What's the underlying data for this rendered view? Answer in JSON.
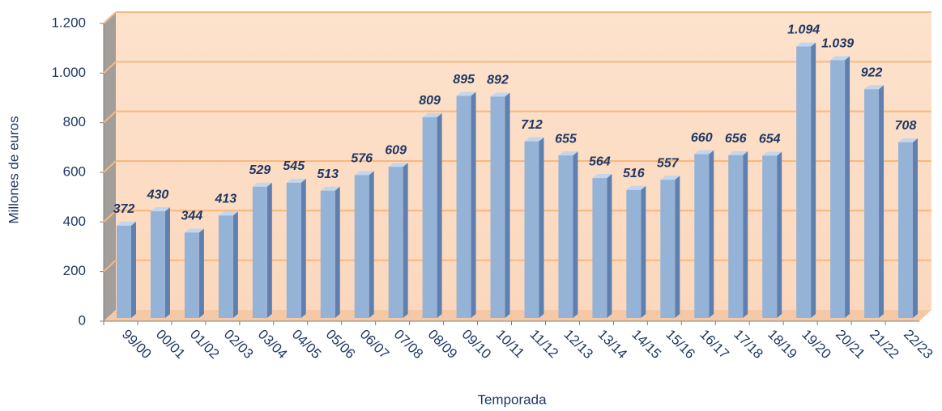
{
  "chart_data": {
    "type": "bar",
    "x_label": "Temporada",
    "y_label": "Millones de euros",
    "categories": [
      "99/00",
      "00/01",
      "01/02",
      "02/03",
      "03/04",
      "04/05",
      "05/06",
      "06/07",
      "07/08",
      "08/09",
      "09/10",
      "10/11",
      "11/12",
      "12/13",
      "13/14",
      "14/15",
      "15/16",
      "16/17",
      "17/18",
      "18/19",
      "19/20",
      "20/21",
      "21/22",
      "22/23"
    ],
    "values": [
      372,
      430,
      344,
      413,
      529,
      545,
      513,
      576,
      609,
      809,
      895,
      892,
      712,
      655,
      564,
      516,
      557,
      660,
      656,
      654,
      1094,
      1039,
      922,
      708
    ],
    "value_labels": [
      "372",
      "430",
      "344",
      "413",
      "529",
      "545",
      "513",
      "576",
      "609",
      "809",
      "895",
      "892",
      "712",
      "655",
      "564",
      "516",
      "557",
      "660",
      "656",
      "654",
      "1.094",
      "1.039",
      "922",
      "708"
    ],
    "color": "#95b3d7",
    "ylim": [
      0,
      1200
    ],
    "yticks": [
      0,
      200,
      400,
      600,
      800,
      {
        "value": 1000,
        "label": "1.000"
      },
      {
        "value": 1200,
        "label": "1.200"
      }
    ],
    "grid": true
  }
}
